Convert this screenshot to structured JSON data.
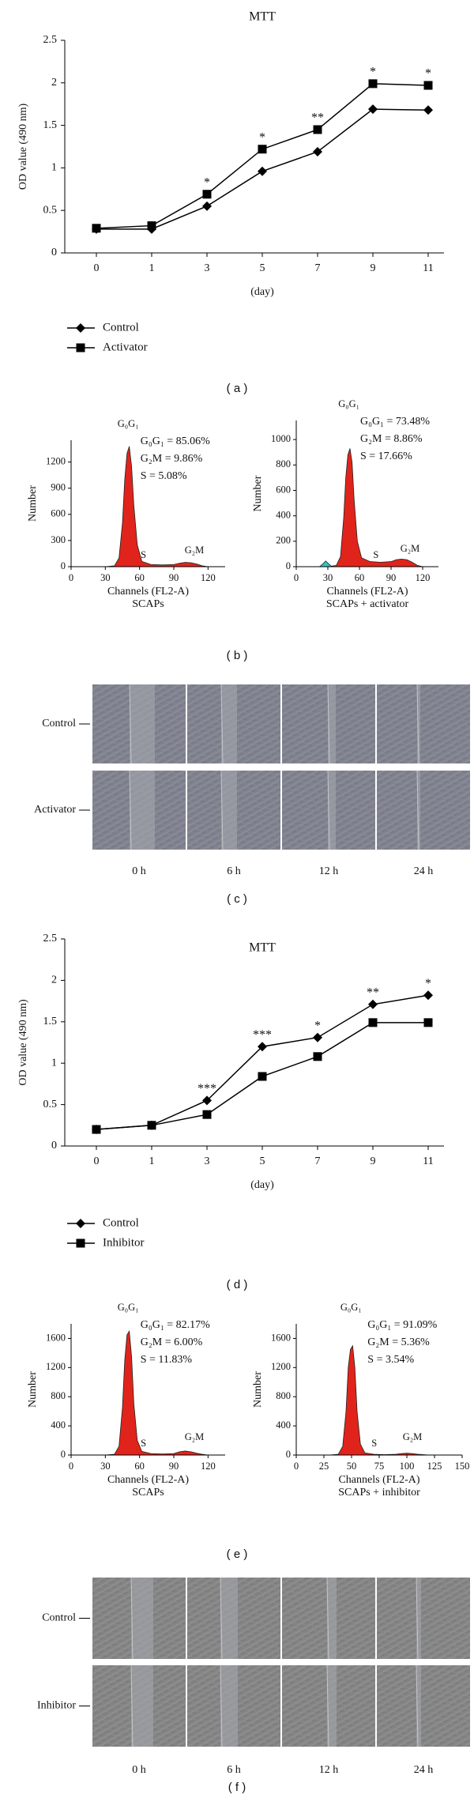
{
  "chart_data": [
    {
      "type": "line",
      "title": "MTT",
      "x_label": "(day)",
      "y_label": "OD value (490 nm)",
      "categories": [
        "0",
        "1",
        "3",
        "5",
        "7",
        "9",
        "11"
      ],
      "series": [
        {
          "name": "Control",
          "color": "#000000",
          "marker": "diamond",
          "values": [
            0.28,
            0.28,
            0.55,
            0.96,
            1.19,
            1.69,
            1.68
          ]
        },
        {
          "name": "Activator",
          "color": "#000000",
          "marker": "square",
          "values": [
            0.29,
            0.32,
            0.69,
            1.22,
            1.45,
            1.99,
            1.97
          ]
        }
      ],
      "significance": [
        null,
        null,
        "*",
        "*",
        "**",
        "*",
        "*"
      ],
      "ylim": [
        0,
        2.5
      ],
      "yticks": [
        0,
        0.5,
        1,
        1.5,
        2,
        2.5
      ],
      "legend": "bottom-left"
    },
    {
      "type": "area",
      "x_label": "Channels (FL2-A)",
      "subtitle": "SCAPs",
      "y_label": "Number",
      "x": [
        30,
        38,
        42,
        45,
        47,
        49,
        51,
        53,
        55,
        58,
        62,
        70,
        80,
        90,
        95,
        100,
        105,
        110,
        115,
        120
      ],
      "series": [
        {
          "color": "#e0241b",
          "values": [
            0,
            10,
            100,
            500,
            1000,
            1300,
            1380,
            1150,
            700,
            250,
            60,
            25,
            20,
            25,
            40,
            50,
            45,
            30,
            10,
            0
          ]
        }
      ],
      "peak_labels": [
        "G₀G₁",
        "S",
        "G₂M"
      ],
      "annotations": [
        "G₀G₁ = 85.06%",
        "G₂M = 9.86%",
        "S = 5.08%"
      ],
      "xlim": [
        0,
        135
      ],
      "xticks": [
        0,
        30,
        60,
        90,
        120
      ],
      "ylim": [
        0,
        1450
      ],
      "yticks": [
        0,
        300,
        600,
        900,
        1200
      ]
    },
    {
      "type": "area",
      "x_label": "Channels (FL2-A)",
      "subtitle": "SCAPs + activator",
      "y_label": "Number",
      "x": [
        30,
        38,
        42,
        45,
        47,
        49,
        51,
        53,
        55,
        58,
        62,
        70,
        80,
        90,
        95,
        100,
        105,
        110,
        115,
        120
      ],
      "series": [
        {
          "color": "#e0241b",
          "values": [
            0,
            10,
            80,
            380,
            700,
            880,
            930,
            820,
            520,
            200,
            70,
            40,
            35,
            40,
            55,
            60,
            55,
            35,
            10,
            0
          ]
        },
        {
          "color": "#2ec4c4",
          "x": [
            22,
            25,
            28,
            31,
            34
          ],
          "values": [
            0,
            20,
            45,
            20,
            0
          ]
        }
      ],
      "peak_labels": [
        "G₀G₁",
        "S",
        "G₂M"
      ],
      "annotations": [
        "G₀G₁ = 73.48%",
        "G₂M = 8.86%",
        "S = 17.66%"
      ],
      "xlim": [
        0,
        135
      ],
      "xticks": [
        0,
        30,
        60,
        90,
        120
      ],
      "ylim": [
        0,
        1150
      ],
      "yticks": [
        0,
        200,
        400,
        600,
        800,
        1000
      ]
    },
    {
      "type": "line",
      "title": "MTT",
      "x_label": "(day)",
      "y_label": "OD value (490 nm)",
      "categories": [
        "0",
        "1",
        "3",
        "5",
        "7",
        "9",
        "11"
      ],
      "series": [
        {
          "name": "Control",
          "color": "#000000",
          "marker": "diamond",
          "values": [
            0.2,
            0.25,
            0.55,
            1.2,
            1.31,
            1.71,
            1.82
          ]
        },
        {
          "name": "Inhibitor",
          "color": "#000000",
          "marker": "square",
          "values": [
            0.2,
            0.25,
            0.38,
            0.84,
            1.08,
            1.49,
            1.49
          ]
        }
      ],
      "significance": [
        null,
        null,
        "***",
        "***",
        "*",
        "**",
        "*"
      ],
      "ylim": [
        0,
        2.5
      ],
      "yticks": [
        0,
        0.5,
        1,
        1.5,
        2,
        2.5
      ],
      "legend": "bottom-left"
    },
    {
      "type": "area",
      "x_label": "Channels (FL2-A)",
      "subtitle": "SCAPs",
      "y_label": "Number",
      "x": [
        30,
        38,
        42,
        45,
        47,
        49,
        51,
        53,
        55,
        58,
        62,
        70,
        80,
        90,
        95,
        100,
        105,
        110,
        115,
        120
      ],
      "series": [
        {
          "color": "#e0241b",
          "values": [
            0,
            10,
            120,
            650,
            1300,
            1650,
            1700,
            1350,
            700,
            200,
            50,
            20,
            15,
            20,
            45,
            55,
            45,
            25,
            10,
            0
          ]
        }
      ],
      "peak_labels": [
        "G₀G₁",
        "S",
        "G₂M"
      ],
      "annotations": [
        "G₀G₁ = 82.17%",
        "G₂M = 6.00%",
        "S = 11.83%"
      ],
      "xlim": [
        0,
        135
      ],
      "xticks": [
        0,
        30,
        60,
        90,
        120
      ],
      "ylim": [
        0,
        1800
      ],
      "yticks": [
        0,
        400,
        800,
        1200,
        1600
      ]
    },
    {
      "type": "area",
      "x_label": "Channels (FL2-A)",
      "subtitle": "SCAPs + inhibitor",
      "y_label": "Number",
      "x": [
        30,
        38,
        42,
        45,
        47,
        49,
        51,
        53,
        55,
        58,
        62,
        70,
        80,
        90,
        95,
        100,
        105,
        110,
        115,
        120
      ],
      "series": [
        {
          "color": "#e0241b",
          "values": [
            0,
            10,
            120,
            600,
            1200,
            1450,
            1500,
            1200,
            600,
            150,
            30,
            10,
            5,
            10,
            20,
            25,
            20,
            10,
            5,
            0
          ]
        }
      ],
      "peak_labels": [
        "G₀G₁",
        "S",
        "G₂M"
      ],
      "annotations": [
        "G₀G₁ = 91.09%",
        "G₂M = 5.36%",
        "S = 3.54%"
      ],
      "xlim": [
        0,
        150
      ],
      "xticks": [
        0,
        25,
        50,
        75,
        100,
        125,
        150
      ],
      "ylim": [
        0,
        1800
      ],
      "yticks": [
        0,
        400,
        800,
        1200,
        1600
      ]
    }
  ],
  "wound_healing": [
    {
      "rows": [
        "Control",
        "Activator"
      ],
      "columns": [
        "0 h",
        "6 h",
        "12 h",
        "24 h"
      ]
    },
    {
      "rows": [
        "Control",
        "Inhibitor"
      ],
      "columns": [
        "0 h",
        "6 h",
        "12 h",
        "24 h"
      ]
    }
  ],
  "panel_labels": [
    "( a )",
    "( b )",
    "( c )",
    "( d )",
    "( e )",
    "( f )"
  ]
}
